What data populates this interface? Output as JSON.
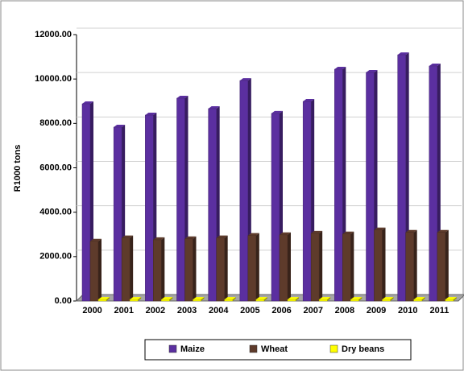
{
  "chart_data": {
    "type": "bar",
    "y_label": "R1000 tons",
    "categories": [
      "2000",
      "2001",
      "2002",
      "2003",
      "2004",
      "2005",
      "2006",
      "2007",
      "2008",
      "2009",
      "2010",
      "2011"
    ],
    "series": [
      {
        "name": "Maize",
        "color": "#5b2fa0",
        "values": [
          8880,
          7830,
          8375,
          9135,
          8665,
          9930,
          8450,
          8990,
          10440,
          10295,
          11090,
          10585
        ]
      },
      {
        "name": "Wheat",
        "color": "#5e3b2b",
        "values": [
          2690,
          2840,
          2760,
          2800,
          2840,
          2950,
          2980,
          3050,
          3020,
          3200,
          3090,
          3090
        ]
      },
      {
        "name": "Dry beans",
        "color": "#ffff00",
        "values": [
          70,
          70,
          70,
          70,
          70,
          70,
          70,
          70,
          70,
          70,
          70,
          70
        ]
      }
    ],
    "ylim": [
      0,
      12000
    ],
    "yticks": [
      {
        "value": 0,
        "label": "0.00"
      },
      {
        "value": 2000,
        "label": "2000.00"
      },
      {
        "value": 4000,
        "label": "4000.00"
      },
      {
        "value": 6000,
        "label": "6000.00"
      },
      {
        "value": 8000,
        "label": "8000.00"
      },
      {
        "value": 10000,
        "label": "10000.00"
      },
      {
        "value": 12000,
        "label": "12000.00"
      }
    ],
    "grid": true
  }
}
